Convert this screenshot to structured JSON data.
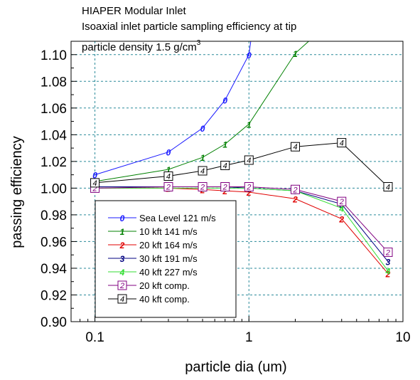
{
  "chart_data": {
    "type": "line",
    "title": [
      "HIAPER Modular Inlet",
      "Isoaxial inlet particle sampling efficiency at tip"
    ],
    "subtitle": "particle density 1.5 g/cm",
    "subtitle_sup": "3",
    "xlabel": "particle dia (um)",
    "ylabel": "passing efficiency",
    "x_scale": "log",
    "xlim": [
      0.07,
      10
    ],
    "ylim": [
      0.9,
      1.11
    ],
    "x_ticks": [
      0.1,
      1,
      10
    ],
    "x_tick_labels": [
      "0.1",
      "1",
      "10"
    ],
    "y_ticks": [
      0.9,
      0.92,
      0.94,
      0.96,
      0.98,
      1.0,
      1.02,
      1.04,
      1.06,
      1.08,
      1.1
    ],
    "y_tick_labels": [
      "0.90",
      "0.92",
      "0.94",
      "0.96",
      "0.98",
      "1.00",
      "1.02",
      "1.04",
      "1.06",
      "1.08",
      "1.10"
    ],
    "grid": true,
    "legend_position": "lower-left",
    "series": [
      {
        "name": "Sea Level 121 m/s",
        "marker": "0",
        "marker_style": "text",
        "color": "#1a1aff",
        "x": [
          0.1,
          0.3,
          0.5,
          0.7,
          1.0,
          1.03
        ],
        "y": [
          1.01,
          1.027,
          1.045,
          1.066,
          1.1,
          1.111
        ],
        "marker_x": [
          0.1,
          0.3,
          0.5,
          0.7,
          1.0
        ]
      },
      {
        "name": "10 kft 141 m/s",
        "marker": "1",
        "marker_style": "text",
        "color": "#008000",
        "x": [
          0.1,
          0.3,
          0.5,
          0.7,
          1.0,
          2.0,
          2.5
        ],
        "y": [
          1.005,
          1.014,
          1.023,
          1.033,
          1.048,
          1.101,
          1.111
        ],
        "marker_x": [
          0.1,
          0.3,
          0.5,
          0.7,
          1.0,
          2.0
        ]
      },
      {
        "name": "20 kft 164 m/s",
        "marker": "2",
        "marker_style": "text",
        "color": "#e00000",
        "x": [
          0.1,
          0.3,
          0.5,
          0.7,
          1.0,
          2.0,
          4.0,
          8.0
        ],
        "y": [
          1.0,
          1.0,
          0.999,
          0.998,
          0.997,
          0.992,
          0.977,
          0.936
        ],
        "marker_x": [
          0.1,
          0.3,
          0.5,
          0.7,
          1.0,
          2.0,
          4.0,
          8.0
        ]
      },
      {
        "name": "30 kft 191 m/s",
        "marker": "3",
        "marker_style": "text",
        "color": "#000080",
        "x": [
          0.1,
          0.3,
          0.5,
          0.7,
          1.0,
          2.0,
          4.0,
          8.0
        ],
        "y": [
          1.001,
          1.001,
          1.001,
          1.001,
          1.0,
          0.998,
          0.988,
          0.945
        ],
        "marker_x": [
          0.1,
          0.3,
          0.5,
          0.7,
          1.0,
          2.0,
          4.0,
          8.0
        ]
      },
      {
        "name": "40 kft 227 m/s",
        "marker": "4",
        "marker_style": "text",
        "color": "#33dd33",
        "x": [
          0.1,
          0.3,
          0.5,
          0.7,
          1.0,
          2.0,
          4.0,
          8.0
        ],
        "y": [
          1.0,
          1.0,
          1.0,
          1.0,
          1.0,
          0.998,
          0.985,
          0.938
        ],
        "marker_x": [
          0.1,
          0.3,
          0.5,
          0.7,
          1.0,
          2.0,
          4.0,
          8.0
        ]
      },
      {
        "name": "20 kft comp.",
        "marker": "2",
        "marker_style": "box",
        "color": "#800080",
        "x": [
          0.1,
          0.3,
          0.5,
          0.7,
          1.0,
          2.0,
          4.0,
          8.0
        ],
        "y": [
          1.0,
          1.001,
          1.001,
          1.001,
          1.001,
          0.999,
          0.99,
          0.952
        ],
        "marker_x": [
          0.1,
          0.3,
          0.5,
          0.7,
          1.0,
          2.0,
          4.0,
          8.0
        ]
      },
      {
        "name": "40 kft comp.",
        "marker": "4",
        "marker_style": "box",
        "color": "#000000",
        "x": [
          0.1,
          0.3,
          0.5,
          0.7,
          1.0,
          2.0,
          4.0,
          8.0
        ],
        "y": [
          1.004,
          1.009,
          1.013,
          1.017,
          1.021,
          1.031,
          1.034,
          1.001
        ],
        "marker_x": [
          0.1,
          0.3,
          0.5,
          0.7,
          1.0,
          2.0,
          4.0,
          8.0
        ]
      }
    ]
  }
}
